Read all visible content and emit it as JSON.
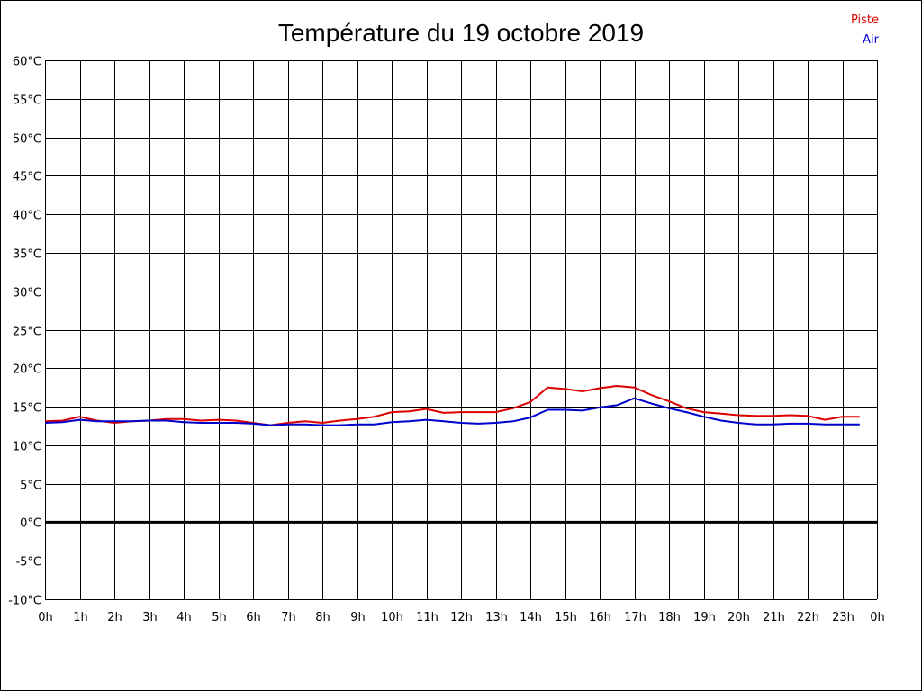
{
  "chart_data": {
    "type": "line",
    "title": "Température du 19 octobre 2019",
    "xlabel": "",
    "ylabel": "",
    "x_tick_labels": [
      "0h",
      "1h",
      "2h",
      "3h",
      "4h",
      "5h",
      "6h",
      "7h",
      "8h",
      "9h",
      "10h",
      "11h",
      "12h",
      "13h",
      "14h",
      "15h",
      "16h",
      "17h",
      "18h",
      "19h",
      "20h",
      "21h",
      "22h",
      "23h",
      "0h"
    ],
    "y_tick_labels": [
      "60°C",
      "55°C",
      "50°C",
      "45°C",
      "40°C",
      "35°C",
      "30°C",
      "25°C",
      "20°C",
      "15°C",
      "10°C",
      "5°C",
      "0°C",
      "-5°C",
      "-10°C"
    ],
    "xlim": [
      0,
      24
    ],
    "ylim": [
      -10,
      60
    ],
    "grid": true,
    "legend_position": "top-right",
    "zero_line": true,
    "series": [
      {
        "name": "Piste",
        "color": "#dd0000",
        "x": [
          0,
          0.5,
          1,
          1.5,
          2,
          2.5,
          3,
          3.5,
          4,
          4.5,
          5,
          5.5,
          6,
          6.5,
          7,
          7.5,
          8,
          8.5,
          9,
          9.5,
          10,
          10.5,
          11,
          11.5,
          12,
          12.5,
          13,
          13.5,
          14,
          14.5,
          15,
          15.5,
          16,
          16.5,
          17,
          17.5,
          18,
          18.5,
          19,
          19.5,
          20,
          20.5,
          21,
          21.5,
          22,
          22.5,
          23,
          23.5
        ],
        "values": [
          13.1,
          13.2,
          13.7,
          13.2,
          12.9,
          13.1,
          13.2,
          13.4,
          13.4,
          13.2,
          13.3,
          13.2,
          12.9,
          12.6,
          12.9,
          13.1,
          12.9,
          13.2,
          13.4,
          13.7,
          14.3,
          14.4,
          14.7,
          14.2,
          14.3,
          14.3,
          14.3,
          14.8,
          15.6,
          17.5,
          17.3,
          17.0,
          17.4,
          17.7,
          17.5,
          16.5,
          15.7,
          14.8,
          14.3,
          14.1,
          13.9,
          13.8,
          13.8,
          13.9,
          13.8,
          13.3,
          13.7,
          13.7
        ]
      },
      {
        "name": "Air",
        "color": "#0000cc",
        "x": [
          0,
          0.5,
          1,
          1.5,
          2,
          2.5,
          3,
          3.5,
          4,
          4.5,
          5,
          5.5,
          6,
          6.5,
          7,
          7.5,
          8,
          8.5,
          9,
          9.5,
          10,
          10.5,
          11,
          11.5,
          12,
          12.5,
          13,
          13.5,
          14,
          14.5,
          15,
          15.5,
          16,
          16.5,
          17,
          17.5,
          18,
          18.5,
          19,
          19.5,
          20,
          20.5,
          21,
          21.5,
          22,
          22.5,
          23,
          23.5
        ],
        "values": [
          12.9,
          13.0,
          13.3,
          13.1,
          13.1,
          13.1,
          13.2,
          13.2,
          13.0,
          12.9,
          12.9,
          12.9,
          12.8,
          12.6,
          12.7,
          12.7,
          12.6,
          12.6,
          12.7,
          12.7,
          13.0,
          13.1,
          13.3,
          13.1,
          12.9,
          12.8,
          12.9,
          13.1,
          13.6,
          14.6,
          14.6,
          14.5,
          14.9,
          15.2,
          16.1,
          15.4,
          14.8,
          14.3,
          13.7,
          13.2,
          12.9,
          12.7,
          12.7,
          12.8,
          12.8,
          12.7,
          12.7,
          12.7
        ]
      }
    ]
  }
}
